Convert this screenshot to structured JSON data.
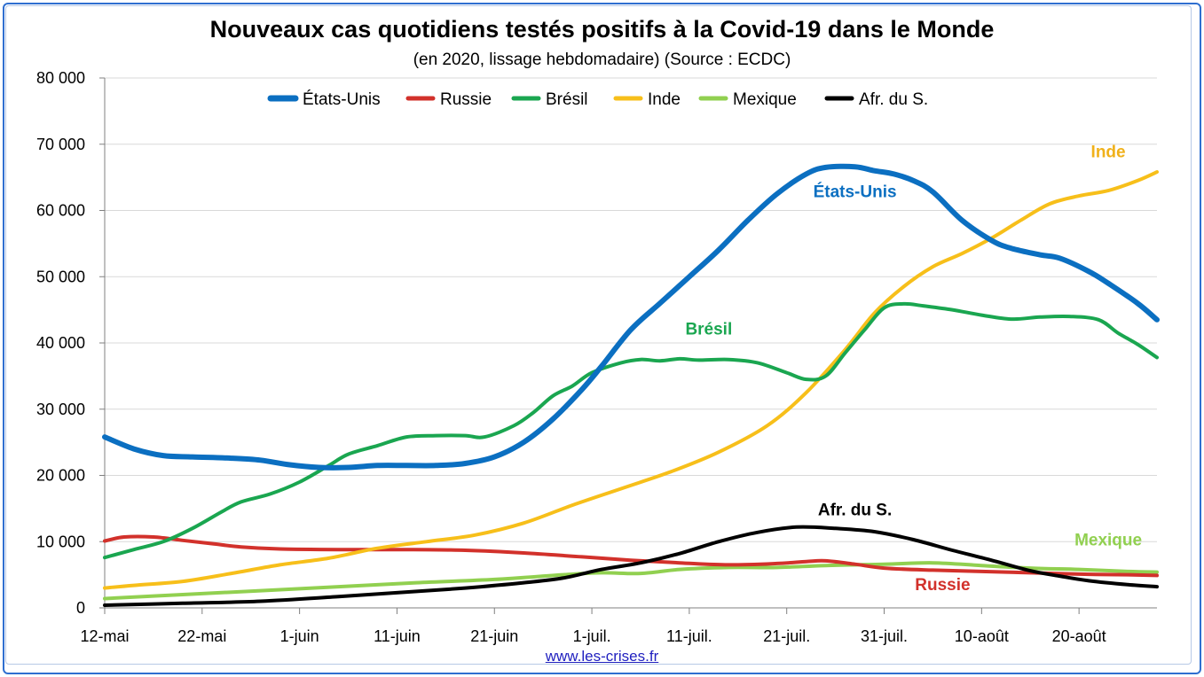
{
  "title": "Nouveaux cas quotidiens testés positifs à la Covid-19 dans le Monde",
  "subtitle": "(en 2020, lissage hebdomadaire) (Source : ECDC)",
  "source_link": "www.les-crises.fr",
  "chart_data": {
    "type": "line",
    "title": "Nouveaux cas quotidiens testés positifs à la Covid-19 dans le Monde",
    "subtitle": "(en 2020, lissage hebdomadaire) (Source : ECDC)",
    "x_start": "2020-05-12",
    "x_end": "2020-08-28",
    "x_ticks": [
      {
        "date": "2020-05-12",
        "label": "12-mai"
      },
      {
        "date": "2020-05-22",
        "label": "22-mai"
      },
      {
        "date": "2020-06-01",
        "label": "1-juin"
      },
      {
        "date": "2020-06-11",
        "label": "11-juin"
      },
      {
        "date": "2020-06-21",
        "label": "21-juin"
      },
      {
        "date": "2020-07-01",
        "label": "1-juil."
      },
      {
        "date": "2020-07-11",
        "label": "11-juil."
      },
      {
        "date": "2020-07-21",
        "label": "21-juil."
      },
      {
        "date": "2020-07-31",
        "label": "31-juil."
      },
      {
        "date": "2020-08-10",
        "label": "10-août"
      },
      {
        "date": "2020-08-20",
        "label": "20-août"
      }
    ],
    "ylim": [
      0,
      80000
    ],
    "y_ticks": [
      {
        "value": 0,
        "label": "0"
      },
      {
        "value": 10000,
        "label": "10 000"
      },
      {
        "value": 20000,
        "label": "20 000"
      },
      {
        "value": 30000,
        "label": "30 000"
      },
      {
        "value": 40000,
        "label": "40 000"
      },
      {
        "value": 50000,
        "label": "50 000"
      },
      {
        "value": 60000,
        "label": "60 000"
      },
      {
        "value": 70000,
        "label": "70 000"
      },
      {
        "value": 80000,
        "label": "80 000"
      }
    ],
    "grid": true,
    "legend_position": "top",
    "series": [
      {
        "name": "États-Unis",
        "color": "#0b6fc1",
        "width": 6,
        "label": "États-Unis",
        "points": [
          [
            "2020-05-12",
            25800
          ],
          [
            "2020-05-15",
            24000
          ],
          [
            "2020-05-18",
            23000
          ],
          [
            "2020-05-21",
            22800
          ],
          [
            "2020-05-25",
            22600
          ],
          [
            "2020-05-28",
            22300
          ],
          [
            "2020-05-31",
            21600
          ],
          [
            "2020-06-03",
            21200
          ],
          [
            "2020-06-06",
            21200
          ],
          [
            "2020-06-09",
            21500
          ],
          [
            "2020-06-12",
            21500
          ],
          [
            "2020-06-15",
            21500
          ],
          [
            "2020-06-18",
            21800
          ],
          [
            "2020-06-21",
            22800
          ],
          [
            "2020-06-24",
            25000
          ],
          [
            "2020-06-27",
            28500
          ],
          [
            "2020-06-30",
            33000
          ],
          [
            "2020-07-02",
            36500
          ],
          [
            "2020-07-05",
            42000
          ],
          [
            "2020-07-08",
            46000
          ],
          [
            "2020-07-11",
            50000
          ],
          [
            "2020-07-14",
            54000
          ],
          [
            "2020-07-17",
            58500
          ],
          [
            "2020-07-20",
            62500
          ],
          [
            "2020-07-23",
            65500
          ],
          [
            "2020-07-25",
            66500
          ],
          [
            "2020-07-28",
            66600
          ],
          [
            "2020-07-30",
            66000
          ],
          [
            "2020-08-01",
            65500
          ],
          [
            "2020-08-03",
            64500
          ],
          [
            "2020-08-05",
            62800
          ],
          [
            "2020-08-08",
            58500
          ],
          [
            "2020-08-11",
            55500
          ],
          [
            "2020-08-13",
            54300
          ],
          [
            "2020-08-16",
            53300
          ],
          [
            "2020-08-18",
            52800
          ],
          [
            "2020-08-21",
            50800
          ],
          [
            "2020-08-23",
            49000
          ],
          [
            "2020-08-26",
            46000
          ],
          [
            "2020-08-28",
            43500
          ]
        ]
      },
      {
        "name": "Russie",
        "color": "#d2312b",
        "width": 4,
        "label": "Russie",
        "points": [
          [
            "2020-05-12",
            10100
          ],
          [
            "2020-05-14",
            10700
          ],
          [
            "2020-05-17",
            10700
          ],
          [
            "2020-05-20",
            10200
          ],
          [
            "2020-05-23",
            9700
          ],
          [
            "2020-05-26",
            9200
          ],
          [
            "2020-05-30",
            8900
          ],
          [
            "2020-06-05",
            8800
          ],
          [
            "2020-06-12",
            8800
          ],
          [
            "2020-06-18",
            8700
          ],
          [
            "2020-06-24",
            8300
          ],
          [
            "2020-06-30",
            7700
          ],
          [
            "2020-07-05",
            7200
          ],
          [
            "2020-07-10",
            6800
          ],
          [
            "2020-07-15",
            6500
          ],
          [
            "2020-07-20",
            6700
          ],
          [
            "2020-07-23",
            7000
          ],
          [
            "2020-07-25",
            7100
          ],
          [
            "2020-07-28",
            6600
          ],
          [
            "2020-07-31",
            6000
          ],
          [
            "2020-08-05",
            5700
          ],
          [
            "2020-08-10",
            5500
          ],
          [
            "2020-08-15",
            5300
          ],
          [
            "2020-08-20",
            5100
          ],
          [
            "2020-08-25",
            5000
          ],
          [
            "2020-08-28",
            4900
          ]
        ]
      },
      {
        "name": "Brésil",
        "color": "#1aa650",
        "width": 4,
        "label": "Brésil",
        "points": [
          [
            "2020-05-12",
            7600
          ],
          [
            "2020-05-15",
            8800
          ],
          [
            "2020-05-18",
            10000
          ],
          [
            "2020-05-21",
            12000
          ],
          [
            "2020-05-24",
            14500
          ],
          [
            "2020-05-26",
            16000
          ],
          [
            "2020-05-29",
            17200
          ],
          [
            "2020-06-01",
            19000
          ],
          [
            "2020-06-04",
            21500
          ],
          [
            "2020-06-06",
            23200
          ],
          [
            "2020-06-09",
            24500
          ],
          [
            "2020-06-12",
            25800
          ],
          [
            "2020-06-15",
            26000
          ],
          [
            "2020-06-18",
            26000
          ],
          [
            "2020-06-20",
            25800
          ],
          [
            "2020-06-23",
            27500
          ],
          [
            "2020-06-25",
            29500
          ],
          [
            "2020-06-27",
            32000
          ],
          [
            "2020-06-29",
            33500
          ],
          [
            "2020-07-01",
            35500
          ],
          [
            "2020-07-04",
            37000
          ],
          [
            "2020-07-06",
            37500
          ],
          [
            "2020-07-08",
            37300
          ],
          [
            "2020-07-10",
            37600
          ],
          [
            "2020-07-12",
            37400
          ],
          [
            "2020-07-15",
            37500
          ],
          [
            "2020-07-18",
            37000
          ],
          [
            "2020-07-21",
            35500
          ],
          [
            "2020-07-23",
            34500
          ],
          [
            "2020-07-25",
            35000
          ],
          [
            "2020-07-27",
            38500
          ],
          [
            "2020-07-29",
            42000
          ],
          [
            "2020-07-31",
            45300
          ],
          [
            "2020-08-02",
            45900
          ],
          [
            "2020-08-04",
            45600
          ],
          [
            "2020-08-07",
            45000
          ],
          [
            "2020-08-10",
            44200
          ],
          [
            "2020-08-13",
            43600
          ],
          [
            "2020-08-16",
            43900
          ],
          [
            "2020-08-19",
            44000
          ],
          [
            "2020-08-22",
            43500
          ],
          [
            "2020-08-24",
            41500
          ],
          [
            "2020-08-26",
            39800
          ],
          [
            "2020-08-28",
            37800
          ]
        ]
      },
      {
        "name": "Inde",
        "color": "#f7bf1a",
        "width": 4,
        "label": "Inde",
        "points": [
          [
            "2020-05-12",
            3000
          ],
          [
            "2020-05-15",
            3400
          ],
          [
            "2020-05-20",
            4000
          ],
          [
            "2020-05-25",
            5200
          ],
          [
            "2020-05-30",
            6500
          ],
          [
            "2020-06-04",
            7500
          ],
          [
            "2020-06-09",
            9000
          ],
          [
            "2020-06-14",
            10000
          ],
          [
            "2020-06-19",
            11000
          ],
          [
            "2020-06-24",
            12800
          ],
          [
            "2020-06-29",
            15500
          ],
          [
            "2020-07-04",
            18000
          ],
          [
            "2020-07-09",
            20500
          ],
          [
            "2020-07-14",
            23500
          ],
          [
            "2020-07-19",
            27500
          ],
          [
            "2020-07-23",
            32500
          ],
          [
            "2020-07-27",
            39000
          ],
          [
            "2020-07-30",
            44500
          ],
          [
            "2020-08-02",
            48500
          ],
          [
            "2020-08-05",
            51500
          ],
          [
            "2020-08-08",
            53500
          ],
          [
            "2020-08-11",
            55800
          ],
          [
            "2020-08-14",
            58500
          ],
          [
            "2020-08-17",
            61000
          ],
          [
            "2020-08-20",
            62200
          ],
          [
            "2020-08-23",
            63000
          ],
          [
            "2020-08-26",
            64500
          ],
          [
            "2020-08-28",
            65800
          ]
        ]
      },
      {
        "name": "Mexique",
        "color": "#91d050",
        "width": 4,
        "label": "Mexique",
        "points": [
          [
            "2020-05-12",
            1400
          ],
          [
            "2020-05-20",
            2000
          ],
          [
            "2020-05-28",
            2600
          ],
          [
            "2020-06-05",
            3200
          ],
          [
            "2020-06-13",
            3800
          ],
          [
            "2020-06-21",
            4300
          ],
          [
            "2020-06-28",
            5000
          ],
          [
            "2020-07-02",
            5300
          ],
          [
            "2020-07-06",
            5200
          ],
          [
            "2020-07-10",
            5800
          ],
          [
            "2020-07-15",
            6100
          ],
          [
            "2020-07-20",
            6100
          ],
          [
            "2020-07-25",
            6400
          ],
          [
            "2020-07-31",
            6600
          ],
          [
            "2020-08-05",
            6800
          ],
          [
            "2020-08-10",
            6400
          ],
          [
            "2020-08-15",
            6000
          ],
          [
            "2020-08-20",
            5800
          ],
          [
            "2020-08-25",
            5500
          ],
          [
            "2020-08-28",
            5400
          ]
        ]
      },
      {
        "name": "Afr. du S.",
        "color": "#000000",
        "width": 4,
        "label": "Afr. du S.",
        "points": [
          [
            "2020-05-12",
            400
          ],
          [
            "2020-05-20",
            700
          ],
          [
            "2020-05-28",
            1000
          ],
          [
            "2020-06-05",
            1700
          ],
          [
            "2020-06-12",
            2400
          ],
          [
            "2020-06-18",
            3000
          ],
          [
            "2020-06-24",
            3800
          ],
          [
            "2020-06-28",
            4500
          ],
          [
            "2020-07-02",
            5800
          ],
          [
            "2020-07-06",
            6800
          ],
          [
            "2020-07-10",
            8200
          ],
          [
            "2020-07-14",
            10000
          ],
          [
            "2020-07-18",
            11400
          ],
          [
            "2020-07-22",
            12200
          ],
          [
            "2020-07-26",
            12000
          ],
          [
            "2020-07-30",
            11500
          ],
          [
            "2020-08-03",
            10300
          ],
          [
            "2020-08-07",
            8700
          ],
          [
            "2020-08-11",
            7200
          ],
          [
            "2020-08-15",
            5600
          ],
          [
            "2020-08-18",
            4800
          ],
          [
            "2020-08-21",
            4100
          ],
          [
            "2020-08-25",
            3500
          ],
          [
            "2020-08-28",
            3200
          ]
        ]
      }
    ],
    "annotations": [
      {
        "text": "Inde",
        "color": "#f0b11a",
        "date": "2020-08-23",
        "value": 68000
      },
      {
        "text": "États-Unis",
        "color": "#0b6fc1",
        "date": "2020-07-28",
        "value": 62000
      },
      {
        "text": "Brésil",
        "color": "#1aa650",
        "date": "2020-07-13",
        "value": 41300
      },
      {
        "text": "Afr. du S.",
        "color": "#000000",
        "date": "2020-07-28",
        "value": 14000
      },
      {
        "text": "Mexique",
        "color": "#91d050",
        "date": "2020-08-23",
        "value": 9400
      },
      {
        "text": "Russie",
        "color": "#d2312b",
        "date": "2020-08-06",
        "value": 2700
      }
    ]
  }
}
